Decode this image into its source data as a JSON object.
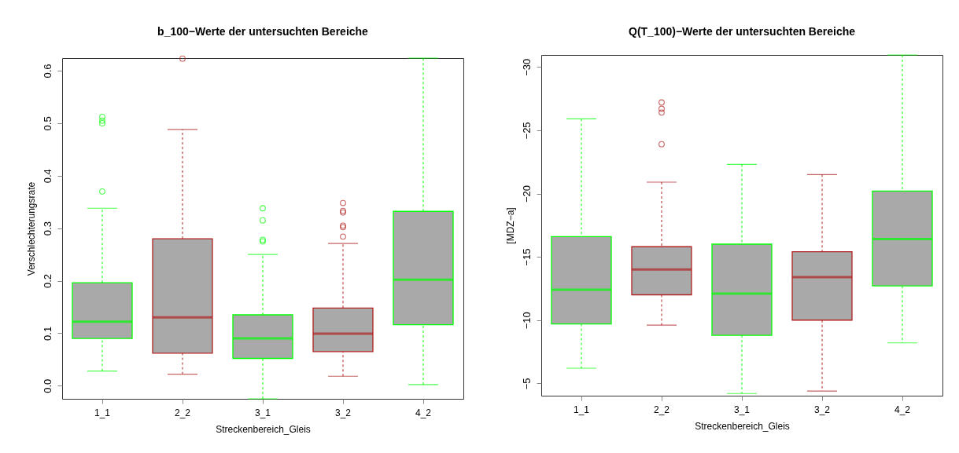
{
  "chart_data": [
    {
      "type": "box",
      "title": "b_100−Werte der untersuchten Bereiche",
      "xlabel": "Streckenbereich_Gleis",
      "ylabel": "Verschlechterungsrate",
      "categories": [
        "1_1",
        "2_2",
        "3_1",
        "3_2",
        "4_2"
      ],
      "colors": [
        "#00ff00",
        "#b22222",
        "#00ff00",
        "#b22222",
        "#00ff00"
      ],
      "boxes": [
        {
          "low": 0.028,
          "q1": 0.09,
          "median": 0.122,
          "q3": 0.196,
          "high": 0.338,
          "outliers": [
            0.37,
            0.5,
            0.505,
            0.512
          ]
        },
        {
          "low": 0.022,
          "q1": 0.062,
          "median": 0.13,
          "q3": 0.28,
          "high": 0.488,
          "outliers": [
            0.623
          ]
        },
        {
          "low": -0.025,
          "q1": 0.052,
          "median": 0.09,
          "q3": 0.135,
          "high": 0.25,
          "outliers": [
            0.275,
            0.278,
            0.315,
            0.338
          ]
        },
        {
          "low": 0.018,
          "q1": 0.065,
          "median": 0.099,
          "q3": 0.148,
          "high": 0.271,
          "outliers": [
            0.284,
            0.302,
            0.305,
            0.33,
            0.333,
            0.348
          ]
        },
        {
          "low": 0.002,
          "q1": 0.116,
          "median": 0.202,
          "q3": 0.332,
          "high": 0.624
        }
      ],
      "ylim": [
        -0.025,
        0.624
      ],
      "yticks": [
        {
          "value": 0,
          "label": "0.0"
        },
        0.1,
        0.2,
        0.3,
        0.4,
        0.5,
        0.6
      ],
      "grid": false
    },
    {
      "type": "box",
      "title": "Q(T_100)−Werte der untersuchten Bereiche",
      "xlabel": "Streckenbereich_Gleis",
      "ylabel": "[MDZ−a]",
      "categories": [
        "1_1",
        "2_2",
        "3_1",
        "3_2",
        "4_2"
      ],
      "colors": [
        "#00ff00",
        "#b22222",
        "#00ff00",
        "#b22222",
        "#00ff00"
      ],
      "boxes": [
        {
          "low": -25.9,
          "q1": -16.6,
          "median": -12.4,
          "q3": -9.7,
          "high": -6.2
        },
        {
          "low": -20.9,
          "q1": -15.8,
          "median": -14.0,
          "q3": -12.0,
          "high": -9.6,
          "outliers": [
            -27.2,
            -26.7,
            -26.4,
            -23.9
          ]
        },
        {
          "low": -22.3,
          "q1": -16.0,
          "median": -12.1,
          "q3": -8.8,
          "high": -4.2
        },
        {
          "low": -21.5,
          "q1": -15.4,
          "median": -13.4,
          "q3": -10.0,
          "high": -4.4
        },
        {
          "low": -30.95,
          "q1": -20.2,
          "median": -16.4,
          "q3": -12.7,
          "high": -8.2
        }
      ],
      "ylim": [
        -4.03,
        -30.95
      ],
      "yticks": [
        -30,
        -25,
        -20,
        -15,
        -10,
        -5
      ],
      "grid": false
    }
  ]
}
